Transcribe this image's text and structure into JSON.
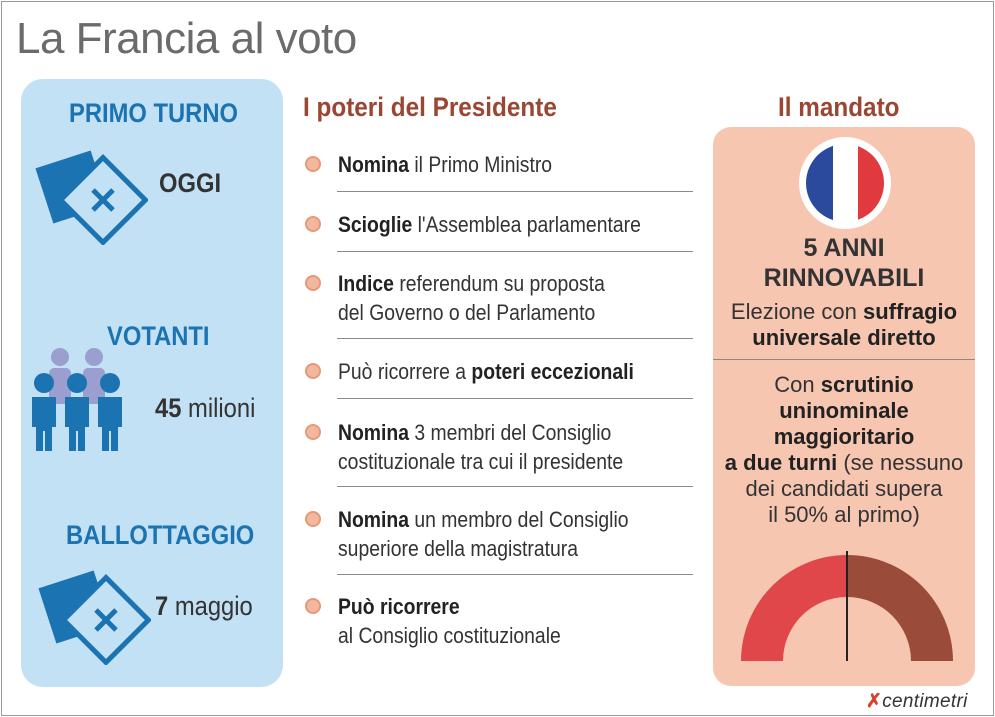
{
  "title": "La Francia al voto",
  "left": {
    "primo_turno": {
      "heading": "PRIMO TURNO",
      "value": "OGGI"
    },
    "votanti": {
      "heading": "VOTANTI",
      "value_bold": "45",
      "value_rest": " milioni"
    },
    "ballottaggio": {
      "heading": "BALLOTTAGGIO",
      "value_bold": "7",
      "value_rest": " maggio"
    }
  },
  "poteri": {
    "title": "I poteri del Presidente",
    "items": [
      {
        "bold": "Nomina",
        "rest": " il Primo Ministro",
        "line2": ""
      },
      {
        "bold": "Scioglie",
        "rest": " l'Assemblea parlamentare",
        "line2": ""
      },
      {
        "bold": "Indice",
        "rest": " referendum su proposta",
        "line2": "del Governo o del Parlamento"
      },
      {
        "pre": "Può ricorrere a ",
        "bold": "poteri eccezionali"
      },
      {
        "bold": "Nomina",
        "rest": " 3 membri del Consiglio",
        "line2": "costituzionale tra cui il presidente"
      },
      {
        "bold": "Nomina",
        "rest": " un membro del Consiglio",
        "line2": "superiore della magistratura"
      },
      {
        "bold": "Può ricorrere",
        "rest": "",
        "line2": "al Consiglio costituzionale"
      }
    ]
  },
  "mandato": {
    "title": "Il mandato",
    "anni_line1": "5 ANNI",
    "anni_line2": "RINNOVABILI",
    "elezione_pre": "Elezione con ",
    "elezione_bold1": "suffragio",
    "elezione_bold2": "universale diretto",
    "scrutinio_pre": "Con ",
    "scrutinio_bold1": "scrutinio",
    "scrutinio_bold2": "uninominale",
    "scrutinio_bold3": "maggioritario",
    "scrutinio_bold4": "a due turni",
    "scrutinio_rest1": " (se nessuno",
    "scrutinio_rest2": "dei candidati supera",
    "scrutinio_rest3": "il 50% al primo)",
    "gauge_threshold": 0.5
  },
  "colors": {
    "blue_icon": "#1c73b2",
    "flag_blue": "#2b4a9e",
    "flag_red": "#e03a3e",
    "gauge_left": "#e0474a",
    "gauge_right": "#9a4b3a"
  },
  "logo": {
    "mark": "✗",
    "text": "centimetri"
  }
}
